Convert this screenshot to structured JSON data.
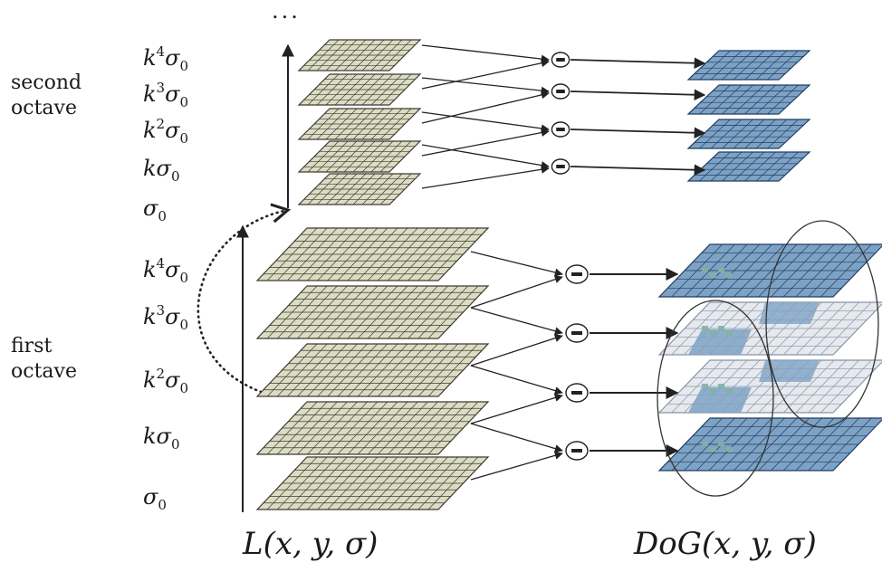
{
  "octave_labels": {
    "second": [
      "second",
      "octave"
    ],
    "first": [
      "first",
      "octave"
    ]
  },
  "scale_labels": {
    "second_octave": [
      {
        "base": "k",
        "sup": "4",
        "sym": "σ",
        "sub": "0"
      },
      {
        "base": "k",
        "sup": "3",
        "sym": "σ",
        "sub": "0"
      },
      {
        "base": "k",
        "sup": "2",
        "sym": "σ",
        "sub": "0"
      },
      {
        "base": "k",
        "sup": "",
        "sym": "σ",
        "sub": "0"
      },
      {
        "base": "",
        "sup": "",
        "sym": "σ",
        "sub": "0"
      }
    ],
    "first_octave": [
      {
        "base": "k",
        "sup": "4",
        "sym": "σ",
        "sub": "0"
      },
      {
        "base": "k",
        "sup": "3",
        "sym": "σ",
        "sub": "0"
      },
      {
        "base": "k",
        "sup": "2",
        "sym": "σ",
        "sub": "0"
      },
      {
        "base": "k",
        "sup": "",
        "sym": "σ",
        "sub": "0"
      },
      {
        "base": "",
        "sup": "",
        "sym": "σ",
        "sub": "0"
      }
    ]
  },
  "continuation": "...",
  "bottom_labels": {
    "gaussian": "L(x, y, σ)",
    "dog": "DoG(x, y, σ)"
  },
  "colors": {
    "gaussian_fill": "#dcdcc4",
    "gaussian_grid": "#3c3c30",
    "dog_fill": "#7ea2c4",
    "dog_grid": "#1d3d66",
    "dog_faded_fill": "#e6e9ee",
    "highlight": "#7fb4a0",
    "line": "#222222"
  },
  "icons": {
    "subtract": "minus-circle-icon"
  }
}
